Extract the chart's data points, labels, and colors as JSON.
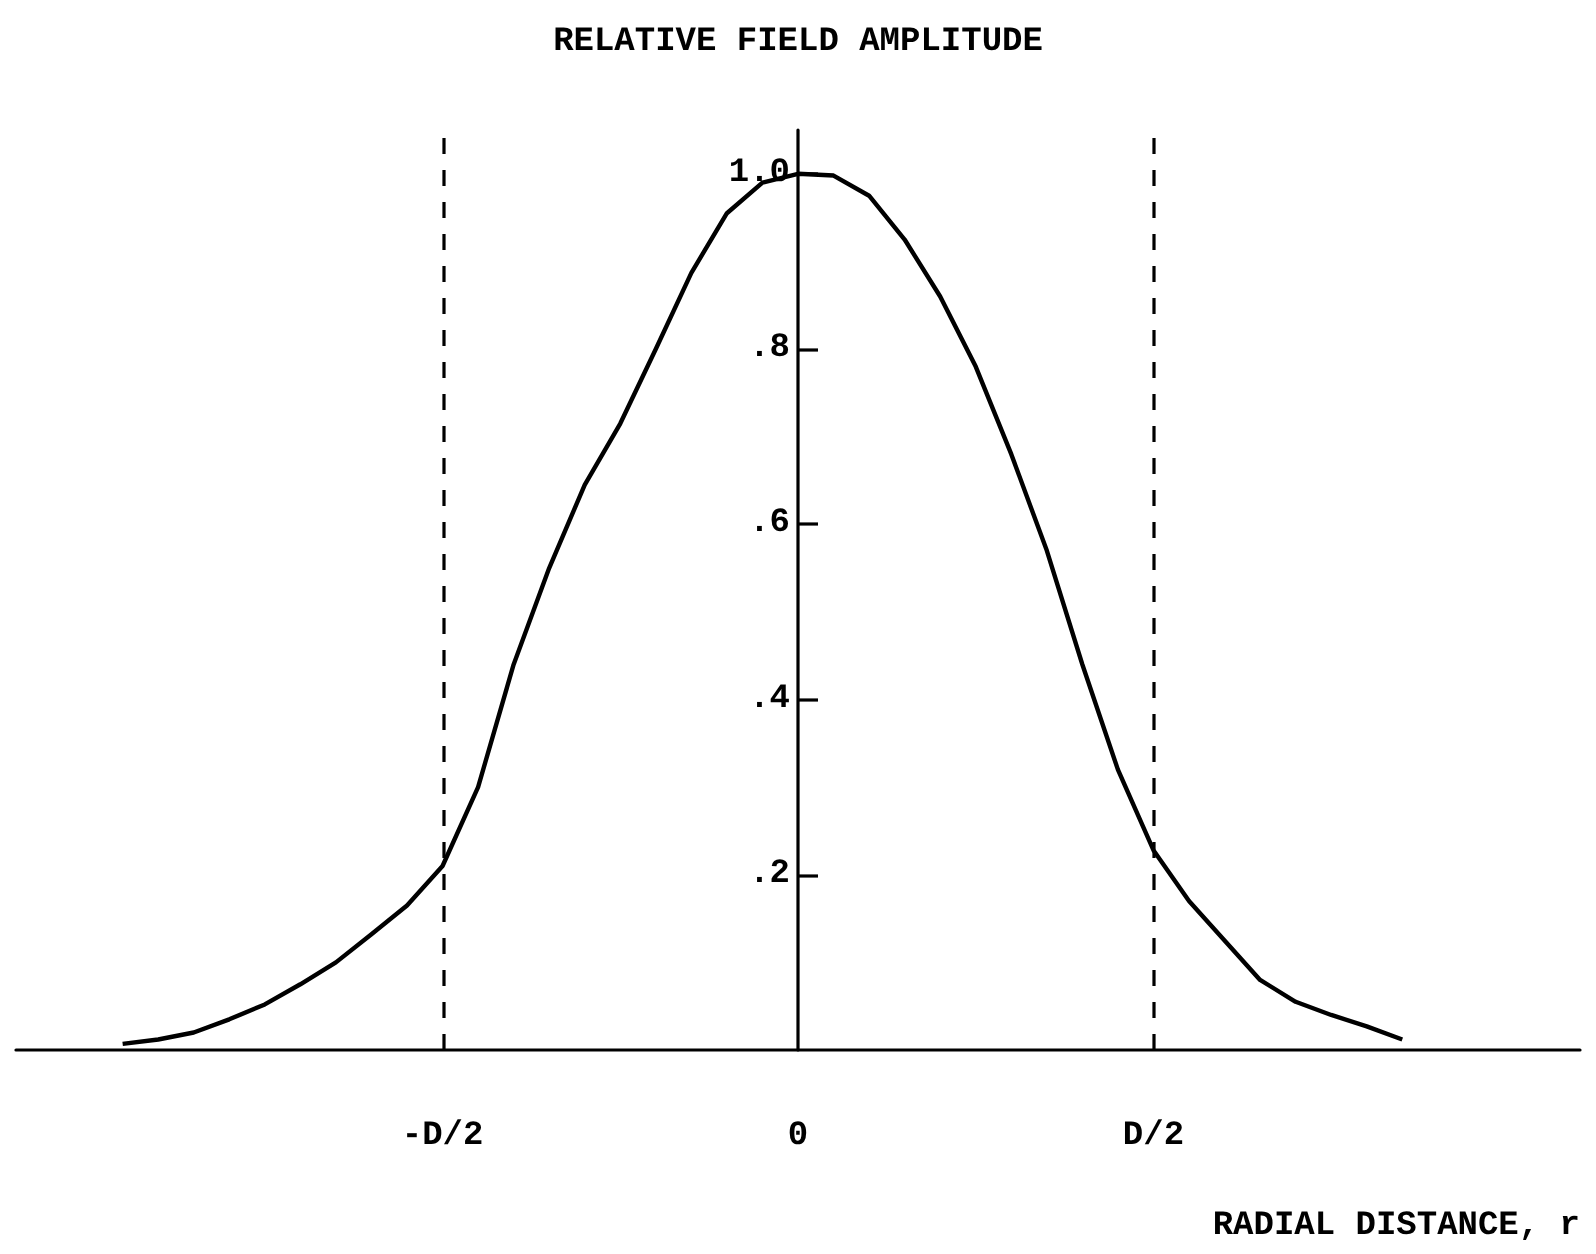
{
  "chart_data": {
    "type": "line",
    "ylabel": "RELATIVE FIELD AMPLITUDE",
    "xlabel": "RADIAL DISTANCE, r",
    "categories": [
      null,
      null,
      null,
      null,
      null,
      null,
      null,
      null,
      null,
      null,
      null,
      null,
      "-D/2",
      null,
      null,
      null,
      null,
      null,
      null,
      null,
      null,
      null,
      "0",
      null,
      null,
      null,
      null,
      null,
      null,
      null,
      null,
      null,
      "D/2",
      null,
      null,
      null,
      null,
      null,
      null,
      null,
      null,
      null,
      null,
      null,
      null
    ],
    "series": [
      {
        "color": "#000000",
        "values": [
          null,
          null,
          null,
          0.007,
          0.012,
          0.02,
          0.035,
          0.052,
          0.075,
          0.1,
          0.132,
          0.165,
          0.21,
          0.3,
          0.44,
          0.55,
          0.645,
          0.715,
          0.8,
          0.887,
          0.955,
          0.99,
          1.0,
          0.998,
          0.975,
          0.925,
          0.86,
          0.78,
          0.68,
          0.57,
          0.44,
          0.32,
          0.228,
          0.17,
          0.125,
          0.08,
          0.055,
          0.04,
          0.027,
          0.012,
          null,
          null,
          null,
          null,
          null
        ]
      }
    ],
    "ylim": [
      0,
      1.05
    ],
    "yticks": [
      {
        "value": 0.2,
        "label": ".2"
      },
      {
        "value": 0.4,
        "label": ".4"
      },
      {
        "value": 0.6,
        "label": ".6"
      },
      {
        "value": 0.8,
        "label": ".8"
      },
      {
        "value": 1,
        "label": "1.0"
      }
    ],
    "ref_lines": [
      {
        "axis": "x",
        "value": "-D/2",
        "color": "#000000",
        "line_style": "dashed"
      },
      {
        "axis": "x",
        "value": "D/2",
        "color": "#000000",
        "line_style": "dashed"
      }
    ],
    "grid": false,
    "marker": "none",
    "line_style": "solid"
  }
}
